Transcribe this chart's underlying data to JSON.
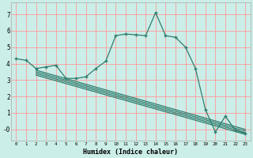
{
  "bg_color": "#cceee8",
  "grid_color": "#ff9999",
  "line_color": "#2d7d6e",
  "xlabel": "Humidex (Indice chaleur)",
  "xlim": [
    -0.5,
    23.5
  ],
  "ylim": [
    -0.7,
    7.7
  ],
  "xticks": [
    0,
    1,
    2,
    3,
    4,
    5,
    6,
    7,
    8,
    9,
    10,
    11,
    12,
    13,
    14,
    15,
    16,
    17,
    18,
    19,
    20,
    21,
    22,
    23
  ],
  "yticks": [
    0,
    1,
    2,
    3,
    4,
    5,
    6,
    7
  ],
  "ytick_labels": [
    "-0",
    "1",
    "2",
    "3",
    "4",
    "5",
    "6",
    "7"
  ],
  "main_curve_x": [
    0,
    1,
    2,
    3,
    4,
    5,
    6,
    7,
    8,
    9,
    10,
    11,
    12,
    13,
    14,
    15,
    16,
    17,
    18,
    19,
    20,
    21,
    22,
    23
  ],
  "main_curve_y": [
    4.3,
    4.2,
    3.7,
    3.8,
    3.9,
    3.1,
    3.1,
    3.2,
    3.7,
    4.15,
    5.7,
    5.8,
    5.75,
    5.7,
    7.1,
    5.7,
    5.6,
    5.0,
    3.7,
    1.2,
    -0.15,
    0.8,
    -0.05,
    -0.25
  ],
  "line1_x": [
    2,
    23
  ],
  "line1_y": [
    3.5,
    -0.1
  ],
  "line2_x": [
    2,
    23
  ],
  "line2_y": [
    3.4,
    -0.2
  ],
  "line3_x": [
    2,
    23
  ],
  "line3_y": [
    3.6,
    0.0
  ],
  "line4_x": [
    2,
    23
  ],
  "line4_y": [
    3.3,
    -0.3
  ]
}
